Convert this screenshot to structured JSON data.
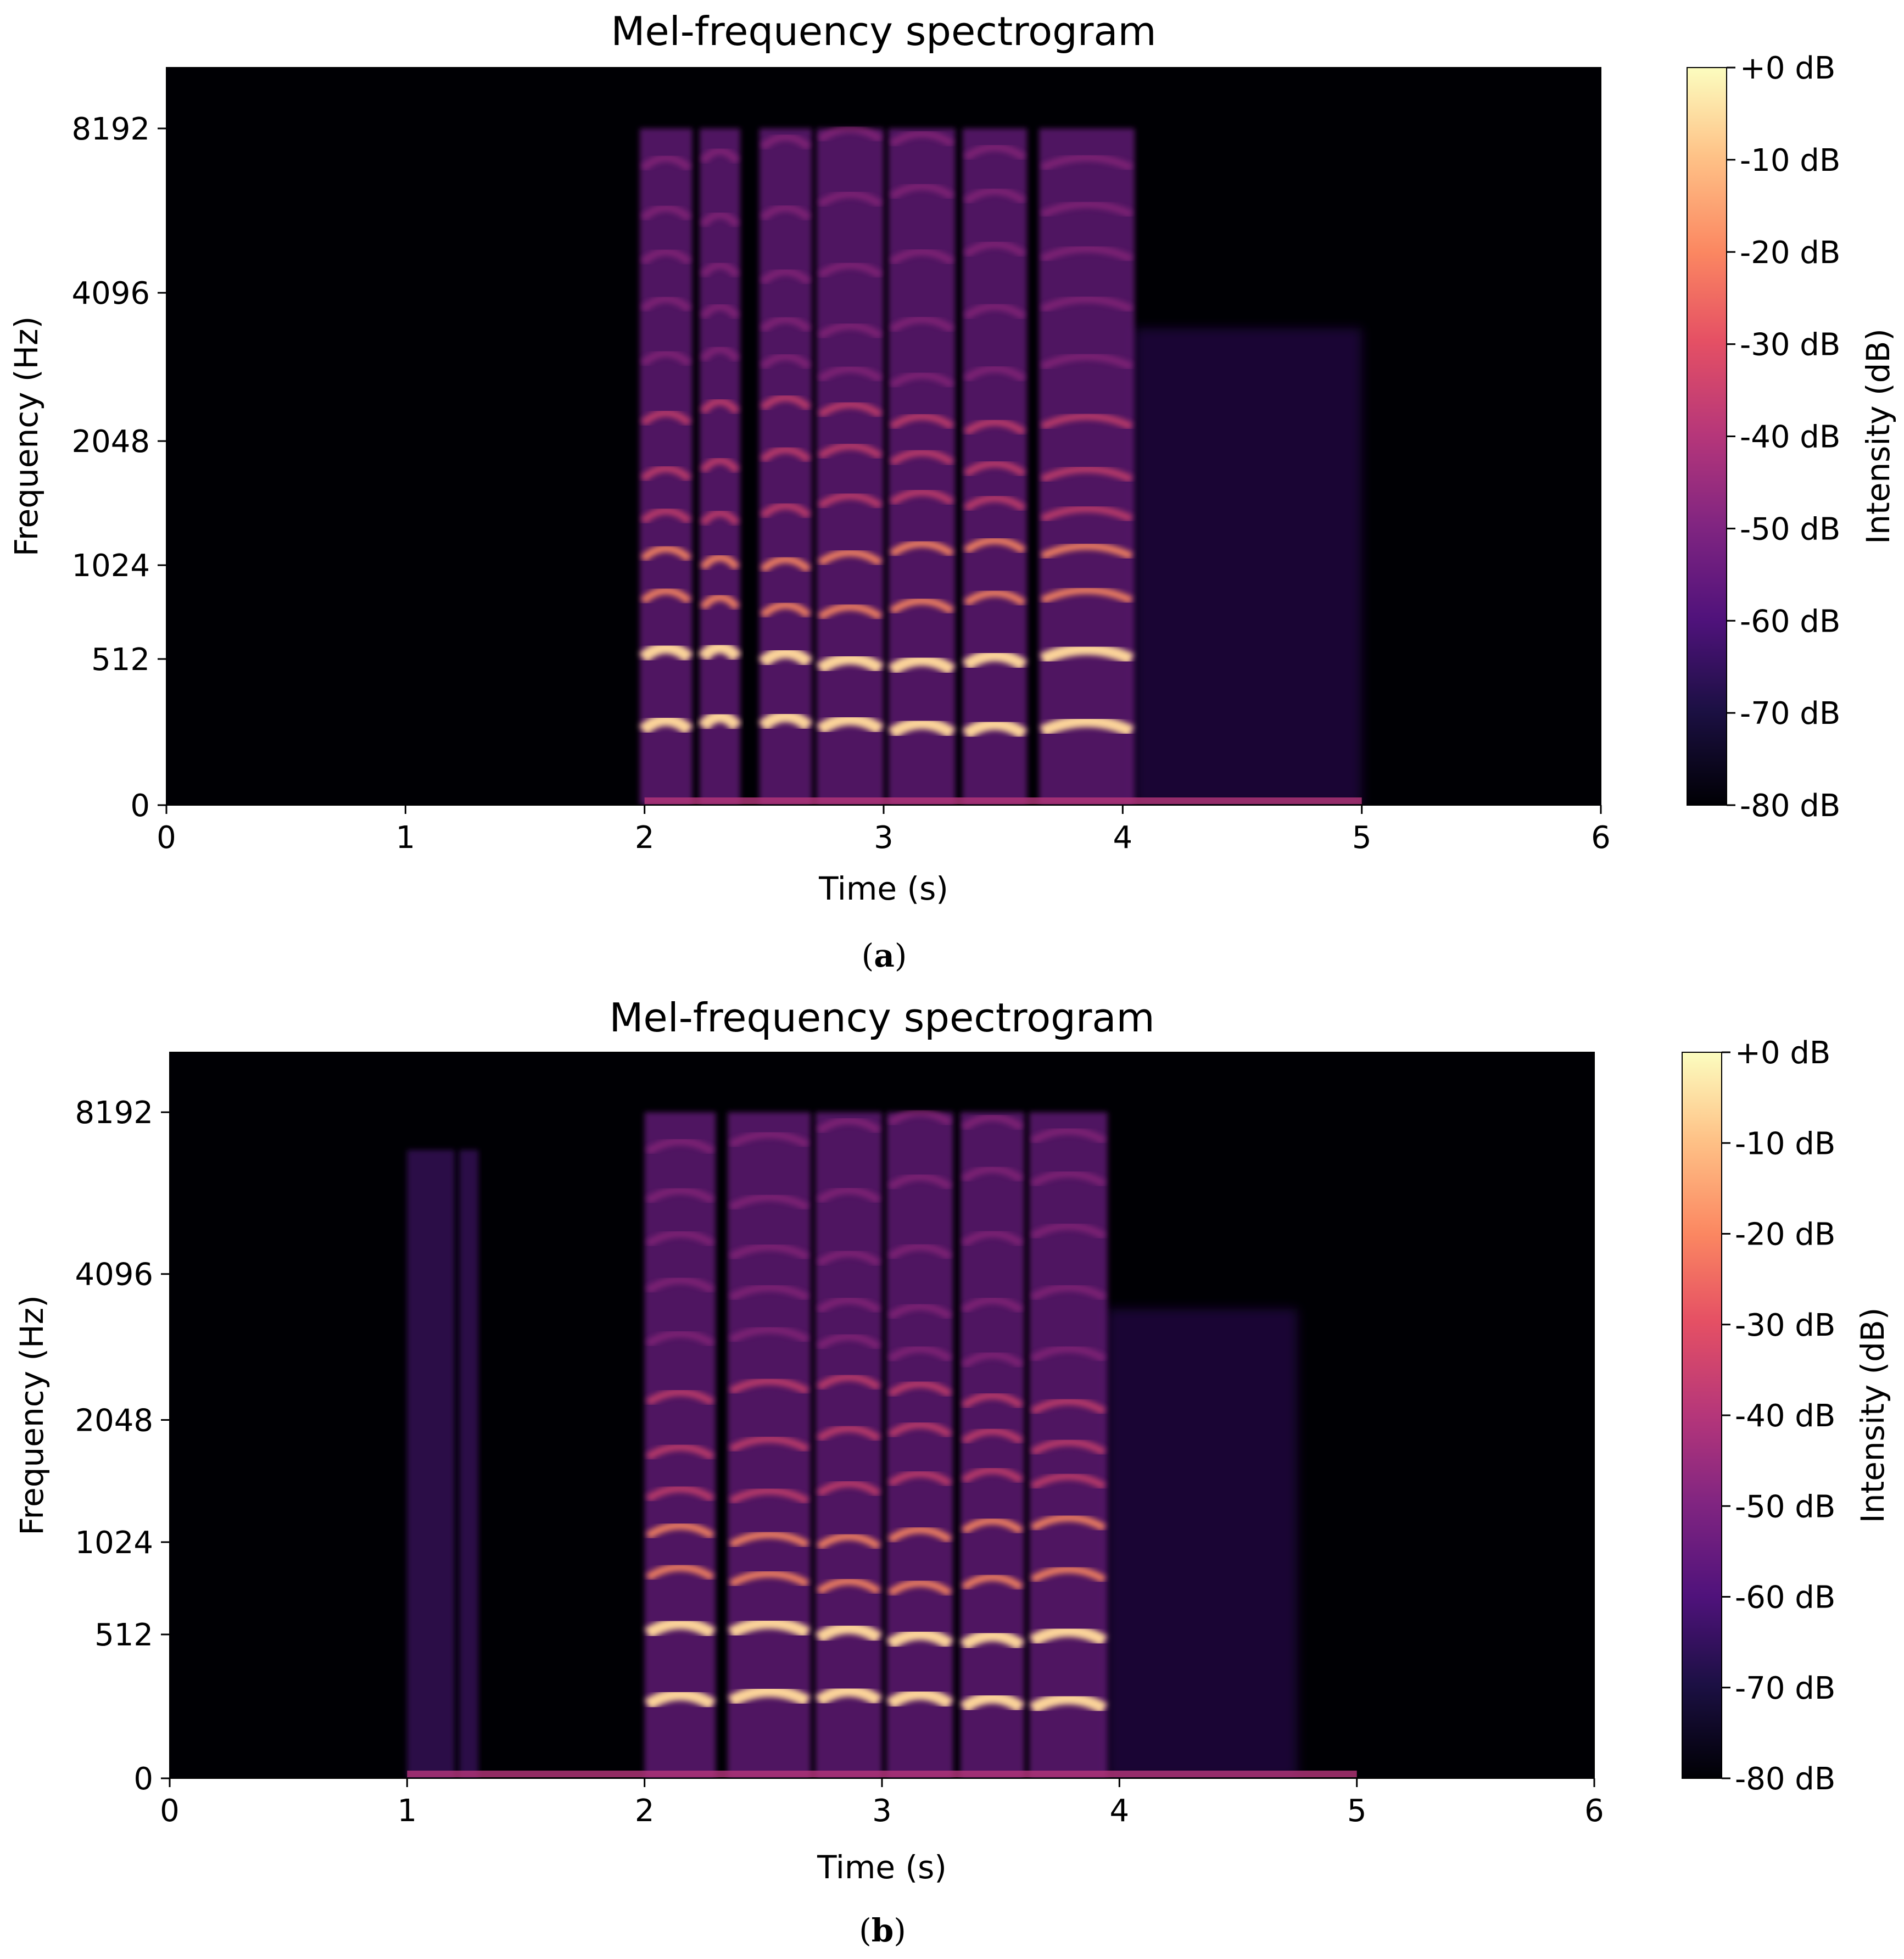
{
  "chart_data": [
    {
      "type": "heatmap",
      "panel_label": "a",
      "title": "Mel-frequency spectrogram",
      "xlabel": "Time (s)",
      "ylabel": "Frequency (Hz)",
      "xlim": [
        0,
        6
      ],
      "x_ticks": [
        "0",
        "1",
        "2",
        "3",
        "4",
        "5",
        "6"
      ],
      "y_ticks": [
        "0",
        "512",
        "1024",
        "2048",
        "4096",
        "8192"
      ],
      "y_scale": "mel",
      "colormap": "magma",
      "colorbar": {
        "label": "Intensity (dB)",
        "range": [
          -80,
          0
        ],
        "ticks": [
          "+0 dB",
          "-10 dB",
          "-20 dB",
          "-30 dB",
          "-40 dB",
          "-50 dB",
          "-60 dB",
          "-70 dB",
          "-80 dB"
        ]
      },
      "speech_segments": [
        {
          "start": 1.98,
          "end": 2.2
        },
        {
          "start": 2.23,
          "end": 2.4
        },
        {
          "start": 2.48,
          "end": 2.7
        },
        {
          "start": 2.72,
          "end": 3.0
        },
        {
          "start": 3.02,
          "end": 3.3
        },
        {
          "start": 3.33,
          "end": 3.6
        },
        {
          "start": 3.65,
          "end": 4.05
        }
      ],
      "noise_region": {
        "start": 4.05,
        "end": 5.0
      },
      "onset_line": {
        "start": 2.0,
        "end": 5.0
      }
    },
    {
      "type": "heatmap",
      "panel_label": "b",
      "title": "Mel-frequency spectrogram",
      "xlabel": "Time (s)",
      "ylabel": "Frequency (Hz)",
      "xlim": [
        0,
        6
      ],
      "x_ticks": [
        "0",
        "1",
        "2",
        "3",
        "4",
        "5",
        "6"
      ],
      "y_ticks": [
        "0",
        "512",
        "1024",
        "2048",
        "4096",
        "8192"
      ],
      "y_scale": "mel",
      "colormap": "magma",
      "colorbar": {
        "label": "Intensity (dB)",
        "range": [
          -80,
          0
        ],
        "ticks": [
          "+0 dB",
          "-10 dB",
          "-20 dB",
          "-30 dB",
          "-40 dB",
          "-50 dB",
          "-60 dB",
          "-70 dB",
          "-80 dB"
        ]
      },
      "speech_segments": [
        {
          "start": 2.0,
          "end": 2.3
        },
        {
          "start": 2.35,
          "end": 2.7
        },
        {
          "start": 2.72,
          "end": 3.0
        },
        {
          "start": 3.02,
          "end": 3.3
        },
        {
          "start": 3.33,
          "end": 3.6
        },
        {
          "start": 3.62,
          "end": 3.95
        }
      ],
      "noise_region": {
        "start": 3.95,
        "end": 4.75
      },
      "early_bursts": [
        {
          "start": 1.0,
          "end": 1.2
        },
        {
          "start": 1.22,
          "end": 1.3
        }
      ],
      "onset_line": {
        "start": 1.0,
        "end": 5.0
      }
    }
  ]
}
